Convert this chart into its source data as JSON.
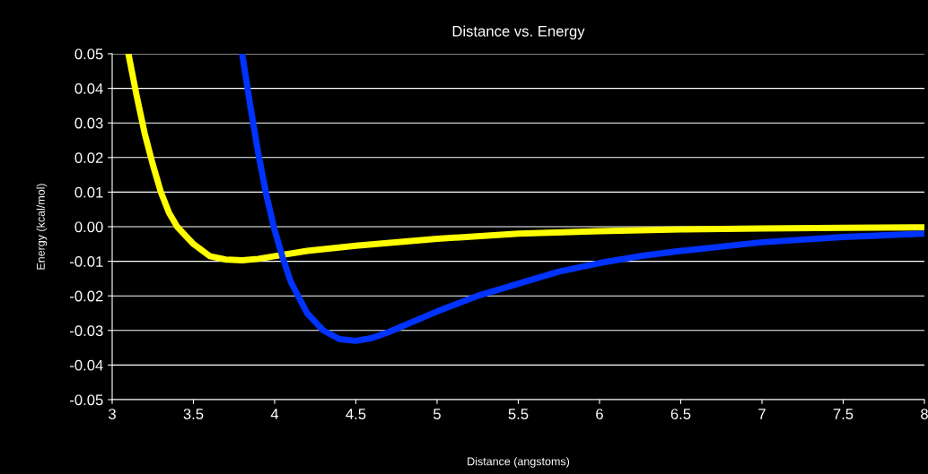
{
  "chart_data": {
    "type": "line",
    "title": "Distance vs. Energy",
    "xlabel": "Distance (angstoms)",
    "ylabel": "Energy (kcal/mol)",
    "series": [
      {
        "color": "#ffff00",
        "x": [
          3.1,
          3.15,
          3.2,
          3.25,
          3.3,
          3.35,
          3.4,
          3.5,
          3.6,
          3.7,
          3.8,
          3.9,
          4.0,
          4.2,
          4.5,
          5.0,
          5.5,
          6.0,
          6.5,
          7.0,
          7.5,
          8.0
        ],
        "values": [
          0.05,
          0.038,
          0.027,
          0.018,
          0.01,
          0.004,
          0.0,
          -0.005,
          -0.0085,
          -0.0095,
          -0.0097,
          -0.0093,
          -0.0085,
          -0.007,
          -0.0055,
          -0.0035,
          -0.002,
          -0.0013,
          -0.0008,
          -0.0005,
          -0.0003,
          -0.0002
        ]
      },
      {
        "color": "#0033ff",
        "x": [
          3.8,
          3.85,
          3.9,
          3.95,
          4.0,
          4.05,
          4.1,
          4.2,
          4.3,
          4.4,
          4.5,
          4.6,
          4.7,
          4.8,
          5.0,
          5.25,
          5.5,
          5.75,
          6.0,
          6.25,
          6.5,
          7.0,
          7.5,
          8.0
        ],
        "values": [
          0.05,
          0.035,
          0.021,
          0.009,
          -0.001,
          -0.009,
          -0.016,
          -0.025,
          -0.03,
          -0.0325,
          -0.033,
          -0.0322,
          -0.0305,
          -0.0285,
          -0.0245,
          -0.02,
          -0.0165,
          -0.013,
          -0.0105,
          -0.0085,
          -0.007,
          -0.0045,
          -0.003,
          -0.002
        ]
      }
    ],
    "xlim": [
      3,
      8
    ],
    "xticks": [
      3,
      3.5,
      4,
      4.5,
      5,
      5.5,
      6,
      6.5,
      7,
      7.5,
      8
    ],
    "ylim": [
      -0.05,
      0.05
    ],
    "yticks": [
      {
        "value": -0.05,
        "label": "-0.05"
      },
      {
        "value": -0.04,
        "label": "-0.04"
      },
      {
        "value": -0.03,
        "label": "-0.03"
      },
      {
        "value": -0.02,
        "label": "-0.02"
      },
      {
        "value": -0.01,
        "label": "-0.01"
      },
      {
        "value": 0,
        "label": "0.00"
      },
      {
        "value": 0.01,
        "label": "0.01"
      },
      {
        "value": 0.02,
        "label": "0.02"
      },
      {
        "value": 0.03,
        "label": "0.03"
      },
      {
        "value": 0.04,
        "label": "0.04"
      },
      {
        "value": 0.05,
        "label": "0.05"
      }
    ],
    "grid": "y",
    "line_style": "solid"
  }
}
